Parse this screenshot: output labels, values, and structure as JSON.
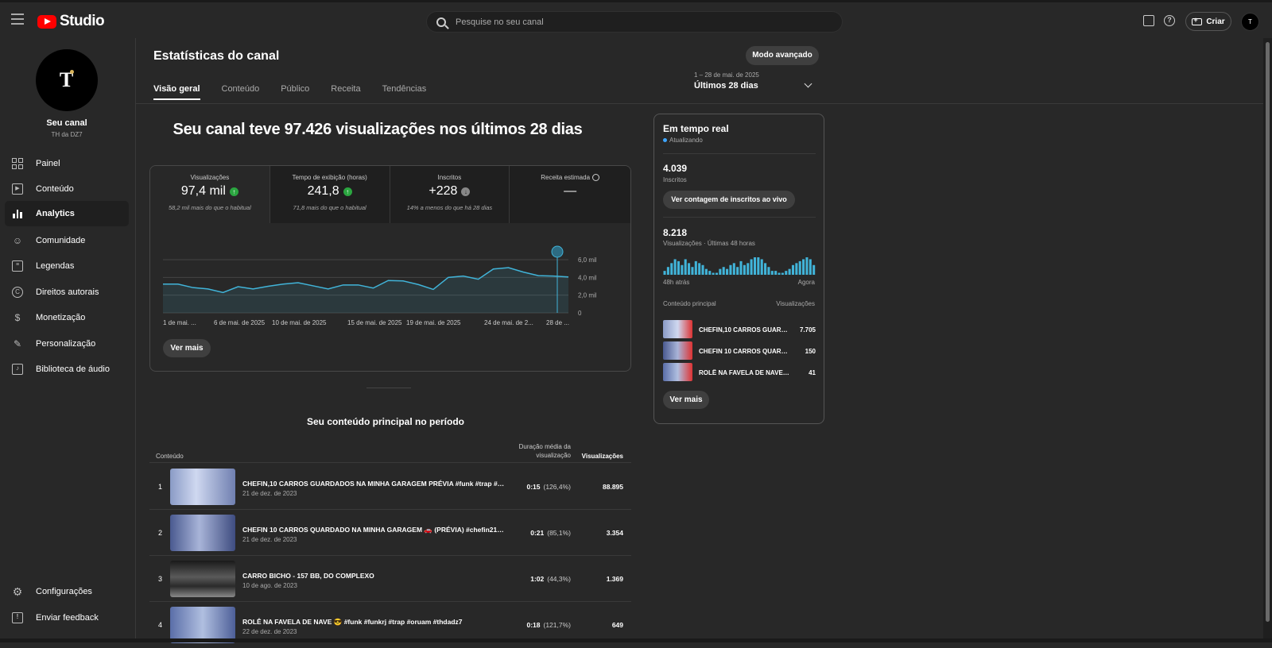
{
  "app": {
    "logo_text": "Studio",
    "avatar_initial": "T"
  },
  "search": {
    "placeholder": "Pesquise no seu canal"
  },
  "header": {
    "create_label": "Criar"
  },
  "sidebar": {
    "channel_label": "Seu canal",
    "channel_name": "TH da DZ7",
    "items": [
      {
        "label": "Painel",
        "icon": "dashboard-icon"
      },
      {
        "label": "Conteúdo",
        "icon": "content-icon"
      },
      {
        "label": "Analytics",
        "icon": "analytics-icon",
        "active": true
      },
      {
        "label": "Comunidade",
        "icon": "community-icon"
      },
      {
        "label": "Legendas",
        "icon": "subtitles-icon"
      },
      {
        "label": "Direitos autorais",
        "icon": "copyright-icon"
      },
      {
        "label": "Monetização",
        "icon": "monetization-icon"
      },
      {
        "label": "Personalização",
        "icon": "customization-icon"
      },
      {
        "label": "Biblioteca de áudio",
        "icon": "audio-library-icon"
      }
    ],
    "footer": [
      {
        "label": "Configurações",
        "icon": "settings-icon"
      },
      {
        "label": "Enviar feedback",
        "icon": "feedback-icon"
      }
    ]
  },
  "page": {
    "title": "Estatísticas do canal",
    "advanced_button": "Modo avançado",
    "tabs": [
      "Visão geral",
      "Conteúdo",
      "Público",
      "Receita",
      "Tendências"
    ],
    "date_range": {
      "dates": "1 – 28 de mai. de 2025",
      "label": "Últimos 28 dias"
    },
    "headline": "Seu canal teve 97.426 visualizações nos últimos 28 dias"
  },
  "metrics": [
    {
      "label": "Visualizações",
      "value": "97,4 mil",
      "trend": "up",
      "sub": "58,2 mil mais do que o habitual"
    },
    {
      "label": "Tempo de exibição (horas)",
      "value": "241,8",
      "trend": "up",
      "sub": "71,8 mais do que o habitual"
    },
    {
      "label": "Inscritos",
      "value": "+228",
      "trend": "down",
      "sub": "14% a menos do que há 28 dias"
    },
    {
      "label": "Receita estimada",
      "value": "—",
      "trend": "none",
      "sub": ""
    }
  ],
  "chart_data": {
    "type": "area",
    "x": [
      "1 de mai.",
      "2 de mai.",
      "3 de mai.",
      "4 de mai.",
      "5 de mai.",
      "6 de mai.",
      "7 de mai.",
      "8 de mai.",
      "9 de mai.",
      "10 de mai.",
      "11 de mai.",
      "12 de mai.",
      "13 de mai.",
      "14 de mai.",
      "15 de mai.",
      "16 de mai.",
      "17 de mai.",
      "18 de mai.",
      "19 de mai.",
      "20 de mai.",
      "21 de mai.",
      "22 de mai.",
      "23 de mai.",
      "24 de mai.",
      "25 de mai.",
      "26 de mai.",
      "27 de mai.",
      "28 de mai."
    ],
    "series": [
      {
        "values": [
          3.25,
          3.25,
          2.85,
          2.7,
          2.3,
          2.95,
          2.7,
          3.0,
          3.25,
          3.4,
          3.05,
          2.7,
          3.15,
          3.15,
          2.8,
          3.65,
          3.6,
          3.2,
          2.65,
          4.0,
          4.15,
          3.8,
          4.95,
          5.1,
          4.6,
          4.2,
          4.15,
          4.05
        ]
      }
    ],
    "x_tick_labels": [
      "1 de mai. ...",
      "6 de mai. de 2025",
      "10 de mai. de 2025",
      "15 de mai. de 2025",
      "19 de mai. de 2025",
      "24 de mai. de 2...",
      "28 de ..."
    ],
    "y_tick_labels": [
      "6,0 mil",
      "4,0 mil",
      "2,0 mil",
      "0"
    ],
    "ylim": [
      0,
      6
    ],
    "grid": true,
    "line_color": "#41b4d9"
  },
  "chart": {
    "more_button": "Ver mais"
  },
  "top_content": {
    "title": "Seu conteúdo principal no período",
    "col_content": "Conteúdo",
    "col_duration": "Duração média da visualização",
    "col_views": "Visualizações",
    "rows": [
      {
        "rank": "1",
        "title": "CHEFIN,10 CARROS GUARDADOS NA MINHA GARAGEM PRÉVIA #funk #trap #c...",
        "date": "21 de dez. de 2023",
        "duration": "0:15",
        "percent": "(126,4%)",
        "views": "88.895"
      },
      {
        "rank": "2",
        "title": "CHEFIN 10 CARROS QUARDADO NA MINHA GARAGEM 🚗 (PRÉVIA) #chefin212...",
        "date": "21 de dez. de 2023",
        "duration": "0:21",
        "percent": "(85,1%)",
        "views": "3.354"
      },
      {
        "rank": "3",
        "title": "CARRO BICHO - 157 BB, DO COMPLEXO",
        "date": "10 de ago. de 2023",
        "duration": "1:02",
        "percent": "(44,3%)",
        "views": "1.369"
      },
      {
        "rank": "4",
        "title": "ROLÊ NA FAVELA DE NAVE 😎 #funk #funkrj #trap #oruam #thdadz7",
        "date": "22 de dez. de 2023",
        "duration": "0:18",
        "percent": "(121,7%)",
        "views": "649"
      }
    ]
  },
  "realtime": {
    "title": "Em tempo real",
    "status": "Atualizando",
    "subscribers": "4.039",
    "subscribers_label": "Inscritos",
    "live_button": "Ver contagem de inscritos ao vivo",
    "views": "8.218",
    "views_label": "Visualizações · Últimas 48 horas",
    "axis_start": "48h atrás",
    "axis_end": "Agora",
    "bars": [
      2,
      4,
      6,
      8,
      7,
      5,
      8,
      6,
      4,
      7,
      6,
      5,
      3,
      2,
      1,
      1,
      3,
      4,
      3,
      5,
      6,
      4,
      7,
      5,
      6,
      8,
      9,
      9,
      8,
      6,
      4,
      2,
      2,
      1,
      1,
      2,
      3,
      5,
      6,
      7,
      8,
      9,
      8,
      5
    ],
    "content_head": "Conteúdo principal",
    "views_head": "Visualizações",
    "items": [
      {
        "title": "CHEFIN,10 CARROS GUARDADOS NA MINHA GARAGEM",
        "views": "7.705"
      },
      {
        "title": "CHEFIN 10 CARROS QUARDADO NA MINHA GARAGEM",
        "views": "150"
      },
      {
        "title": "ROLÊ NA FAVELA DE NAVE 😎",
        "views": "41"
      }
    ],
    "more_button": "Ver mais"
  }
}
